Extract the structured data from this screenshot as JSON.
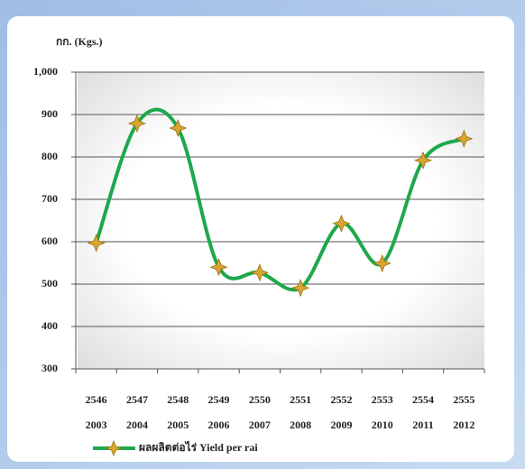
{
  "chart_data": {
    "type": "line",
    "y_label": "กก. (Kgs.)",
    "categories": [
      [
        "2546",
        "2003"
      ],
      [
        "2547",
        "2004"
      ],
      [
        "2548",
        "2005"
      ],
      [
        "2549",
        "2006"
      ],
      [
        "2550",
        "2007"
      ],
      [
        "2551",
        "2008"
      ],
      [
        "2552",
        "2009"
      ],
      [
        "2553",
        "2010"
      ],
      [
        "2554",
        "2011"
      ],
      [
        "2555",
        "2012"
      ]
    ],
    "series": [
      {
        "name": "ผลผลิตต่อไร่ Yield per rai",
        "color": "#1ea84b",
        "marker_color": "#d9a531",
        "values": [
          597,
          879,
          868,
          540,
          527,
          491,
          643,
          549,
          792,
          843
        ]
      }
    ],
    "ylim": [
      300,
      1000
    ],
    "yticks": [
      300,
      400,
      500,
      600,
      700,
      800,
      900,
      {
        "value": 1000,
        "label": "1,000"
      }
    ],
    "grid": true
  }
}
